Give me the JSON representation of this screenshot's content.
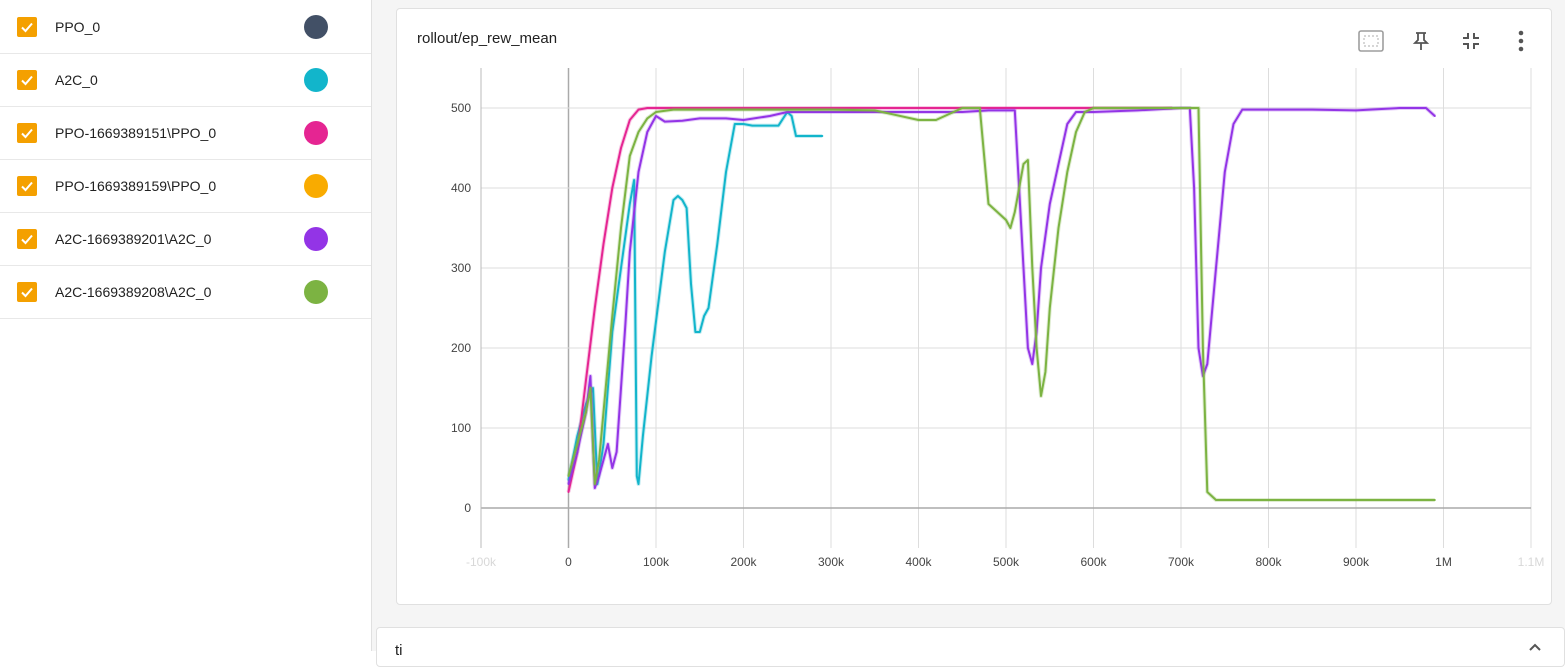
{
  "sidebar": {
    "runs": [
      {
        "name": "PPO_0",
        "color": "#425066",
        "checked": true
      },
      {
        "name": "A2C_0",
        "color": "#12b5cb",
        "checked": true
      },
      {
        "name": "PPO-1669389151\\PPO_0",
        "color": "#e52592",
        "checked": true
      },
      {
        "name": "PPO-1669389159\\PPO_0",
        "color": "#f9ab00",
        "checked": true
      },
      {
        "name": "A2C-1669389201\\A2C_0",
        "color": "#9334e6",
        "checked": true
      },
      {
        "name": "A2C-1669389208\\A2C_0",
        "color": "#7cb342",
        "checked": true
      }
    ],
    "checkbox_color": "#f4a000"
  },
  "card": {
    "title": "rollout/ep_rew_mean",
    "toolbar_icons": [
      "fit-domain-icon",
      "pin-icon",
      "collapse-icon",
      "more-vert-icon"
    ]
  },
  "card2": {
    "title": "ti"
  },
  "chart_data": {
    "type": "line",
    "title": "rollout/ep_rew_mean",
    "xlabel": "",
    "ylabel": "",
    "x_tick_labels": [
      "-100k",
      "0",
      "100k",
      "200k",
      "300k",
      "400k",
      "500k",
      "600k",
      "700k",
      "800k",
      "900k",
      "1M",
      "1.1M"
    ],
    "x_tick_values": [
      -100000,
      0,
      100000,
      200000,
      300000,
      400000,
      500000,
      600000,
      700000,
      800000,
      900000,
      1000000,
      1100000
    ],
    "y_tick_labels": [
      "0",
      "100",
      "200",
      "300",
      "400",
      "500"
    ],
    "y_tick_values": [
      0,
      100,
      200,
      300,
      400,
      500
    ],
    "xlim": [
      -100000,
      1100000
    ],
    "ylim": [
      -50,
      550
    ],
    "grid": true,
    "series": [
      {
        "name": "PPO_0",
        "color": "#425066",
        "x": [],
        "y": []
      },
      {
        "name": "A2C_0",
        "color": "#12b5cb",
        "x": [
          0,
          10000,
          20000,
          28000,
          33000,
          40000,
          50000,
          60000,
          70000,
          75000,
          78000,
          80000,
          85000,
          95000,
          110000,
          120000,
          125000,
          130000,
          135000,
          140000,
          145000,
          150000,
          155000,
          160000,
          170000,
          180000,
          190000,
          200000,
          210000,
          220000,
          230000,
          240000,
          250000,
          255000,
          260000,
          270000,
          280000,
          290000
        ],
        "y": [
          35,
          90,
          130,
          150,
          30,
          80,
          220,
          300,
          380,
          410,
          40,
          30,
          90,
          190,
          320,
          385,
          390,
          385,
          375,
          280,
          220,
          220,
          240,
          250,
          330,
          420,
          480,
          480,
          478,
          478,
          478,
          478,
          495,
          490,
          465,
          465,
          465,
          465
        ]
      },
      {
        "name": "PPO-1669389151\\PPO_0",
        "color": "#e52592",
        "x": [
          0,
          10000,
          20000,
          30000,
          40000,
          50000,
          60000,
          70000,
          80000,
          90000,
          100000,
          150000,
          200000,
          300000,
          400000,
          500000,
          600000,
          690000
        ],
        "y": [
          20,
          70,
          160,
          250,
          330,
          400,
          450,
          485,
          498,
          500,
          500,
          500,
          500,
          500,
          500,
          500,
          500,
          500
        ]
      },
      {
        "name": "PPO-1669389159\\PPO_0",
        "color": "#f9ab00",
        "x": [],
        "y": []
      },
      {
        "name": "A2C-1669389201\\A2C_0",
        "color": "#9334e6",
        "x": [
          0,
          10000,
          20000,
          25000,
          30000,
          35000,
          40000,
          45000,
          50000,
          55000,
          60000,
          65000,
          70000,
          80000,
          90000,
          100000,
          110000,
          130000,
          150000,
          180000,
          200000,
          230000,
          250000,
          300000,
          350000,
          400000,
          450000,
          480000,
          510000,
          515000,
          520000,
          525000,
          530000,
          535000,
          540000,
          550000,
          560000,
          570000,
          580000,
          600000,
          650000,
          700000,
          710000,
          715000,
          720000,
          725000,
          730000,
          740000,
          750000,
          760000,
          770000,
          780000,
          800000,
          850000,
          900000,
          950000,
          980000,
          990000
        ],
        "y": [
          30,
          70,
          120,
          165,
          25,
          40,
          60,
          80,
          50,
          70,
          150,
          230,
          320,
          420,
          470,
          490,
          483,
          484,
          487,
          487,
          485,
          490,
          495,
          495,
          495,
          495,
          495,
          497,
          497,
          400,
          300,
          200,
          180,
          220,
          300,
          380,
          430,
          480,
          495,
          495,
          497,
          500,
          500,
          400,
          200,
          165,
          180,
          300,
          420,
          480,
          498,
          498,
          498,
          498,
          497,
          500,
          500,
          490
        ]
      },
      {
        "name": "A2C-1669389208\\A2C_0",
        "color": "#7cb342",
        "x": [
          0,
          10000,
          20000,
          25000,
          30000,
          35000,
          40000,
          50000,
          60000,
          70000,
          80000,
          90000,
          100000,
          120000,
          150000,
          200000,
          250000,
          300000,
          350000,
          400000,
          420000,
          450000,
          470000,
          480000,
          490000,
          500000,
          505000,
          510000,
          520000,
          525000,
          530000,
          535000,
          540000,
          545000,
          550000,
          560000,
          570000,
          580000,
          590000,
          600000,
          650000,
          700000,
          720000,
          725000,
          730000,
          740000,
          760000,
          800000,
          900000,
          990000
        ],
        "y": [
          40,
          80,
          120,
          150,
          30,
          60,
          120,
          240,
          350,
          440,
          470,
          487,
          495,
          498,
          498,
          498,
          498,
          498,
          497,
          485,
          485,
          500,
          500,
          380,
          370,
          360,
          350,
          370,
          430,
          435,
          300,
          200,
          140,
          170,
          250,
          350,
          420,
          470,
          495,
          500,
          500,
          500,
          500,
          200,
          20,
          10,
          10,
          10,
          10,
          10
        ]
      }
    ]
  }
}
